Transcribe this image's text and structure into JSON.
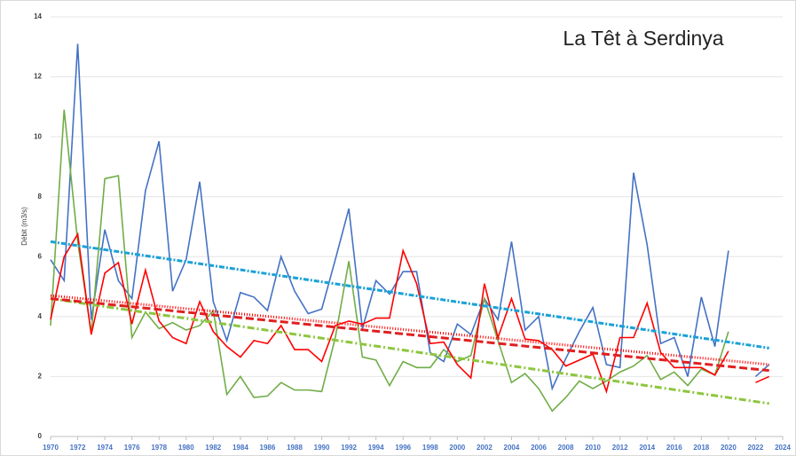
{
  "chart_data": {
    "type": "line",
    "title": "La Têt à Serdinya",
    "y_label": "Débit (m3/s)",
    "x": [
      1970,
      1971,
      1972,
      1973,
      1974,
      1975,
      1976,
      1977,
      1978,
      1979,
      1980,
      1981,
      1982,
      1983,
      1984,
      1985,
      1986,
      1987,
      1988,
      1989,
      1990,
      1991,
      1992,
      1993,
      1994,
      1995,
      1996,
      1997,
      1998,
      1999,
      2000,
      2001,
      2002,
      2003,
      2004,
      2005,
      2006,
      2007,
      2008,
      2009,
      2010,
      2011,
      2012,
      2013,
      2014,
      2015,
      2016,
      2017,
      2018,
      2019,
      2020,
      2021,
      2022,
      2023
    ],
    "series": [
      {
        "color": "#4472c4",
        "values": [
          5.9,
          5.2,
          13.1,
          3.9,
          6.9,
          5.2,
          4.6,
          8.2,
          9.85,
          4.85,
          5.9,
          8.5,
          4.5,
          3.2,
          4.8,
          4.65,
          4.2,
          6.0,
          4.85,
          4.1,
          4.25,
          5.9,
          7.6,
          3.6,
          5.2,
          4.75,
          5.5,
          5.5,
          2.8,
          2.5,
          3.75,
          3.4,
          4.6,
          3.9,
          6.5,
          3.55,
          4.0,
          1.6,
          2.6,
          3.5,
          4.3,
          2.4,
          2.3,
          8.8,
          6.4,
          3.1,
          3.3,
          2.0,
          4.65,
          3.0,
          6.2,
          null,
          2.0,
          2.4
        ]
      },
      {
        "color": "#70ad47",
        "values": [
          3.7,
          10.9,
          6.5,
          3.45,
          8.6,
          8.7,
          3.3,
          4.15,
          3.6,
          3.8,
          3.55,
          3.7,
          4.2,
          1.4,
          2.0,
          1.3,
          1.35,
          1.8,
          1.55,
          1.55,
          1.5,
          3.3,
          5.85,
          2.65,
          2.55,
          1.7,
          2.5,
          2.3,
          2.3,
          2.9,
          2.5,
          2.7,
          4.6,
          3.2,
          1.8,
          2.1,
          1.6,
          0.85,
          1.3,
          1.85,
          1.6,
          1.85,
          2.15,
          2.35,
          2.7,
          1.9,
          2.15,
          1.7,
          2.25,
          2.05,
          3.5,
          null,
          null,
          null
        ]
      },
      {
        "color": "#ff0000",
        "values": [
          3.9,
          6.0,
          6.75,
          3.4,
          5.45,
          5.8,
          3.75,
          5.55,
          3.85,
          3.3,
          3.1,
          4.5,
          3.5,
          3.0,
          2.65,
          3.2,
          3.1,
          3.7,
          2.9,
          2.9,
          2.5,
          3.7,
          3.85,
          3.75,
          3.95,
          3.95,
          6.2,
          5.1,
          3.1,
          3.15,
          2.4,
          1.95,
          5.1,
          3.3,
          4.6,
          3.25,
          3.2,
          2.9,
          2.35,
          2.55,
          2.75,
          1.5,
          3.3,
          3.3,
          4.45,
          2.8,
          2.3,
          2.3,
          2.3,
          2.05,
          2.85,
          null,
          1.8,
          2.0
        ]
      }
    ],
    "trendlines": [
      {
        "color": "#1ba1d8",
        "dash": "6 2 2 2",
        "x": [
          1970,
          2023
        ],
        "values": [
          6.5,
          2.95
        ]
      },
      {
        "color": "#ff0000",
        "dash": "1 2",
        "x": [
          1970,
          2023
        ],
        "values": [
          4.7,
          2.4
        ]
      },
      {
        "color": "#8dc63f",
        "dash": "8 3 2 3",
        "x": [
          1970,
          2023
        ],
        "values": [
          4.6,
          1.1
        ]
      },
      {
        "color": "#e02020",
        "dash": "9 4",
        "x": [
          1970,
          2023
        ],
        "values": [
          4.6,
          2.2
        ]
      }
    ],
    "xlim": [
      1970,
      2024
    ],
    "xticks": [
      1970,
      1972,
      1974,
      1976,
      1978,
      1980,
      1982,
      1984,
      1986,
      1988,
      1990,
      1992,
      1994,
      1996,
      1998,
      2000,
      2002,
      2004,
      2006,
      2008,
      2010,
      2012,
      2014,
      2016,
      2018,
      2020,
      2022,
      2024
    ],
    "ylim": [
      0,
      14
    ],
    "yticks": [
      0,
      2,
      4,
      6,
      8,
      10,
      12,
      14
    ],
    "grid": true
  }
}
